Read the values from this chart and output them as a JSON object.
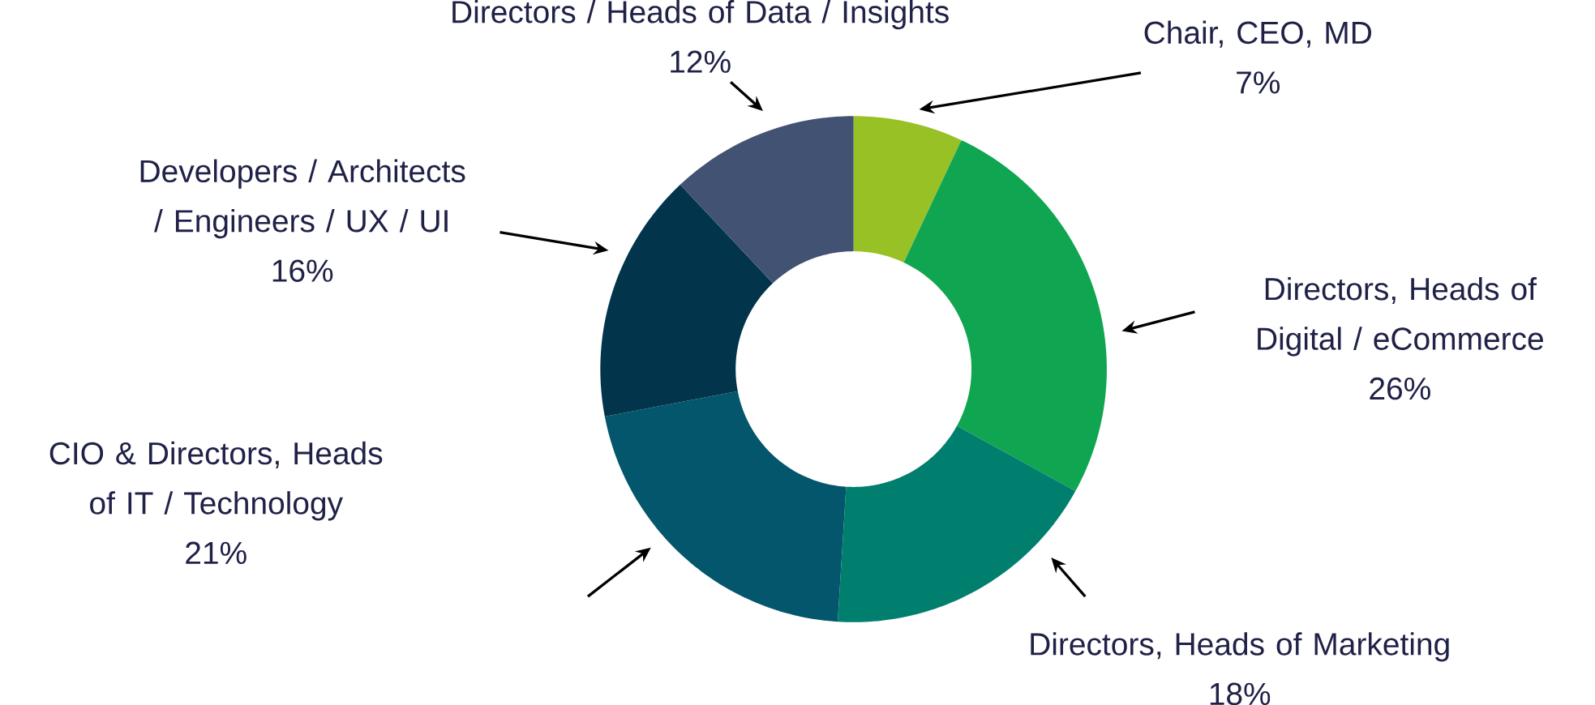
{
  "chart_data": {
    "type": "donut",
    "categories": [
      "Chair, CEO, MD",
      "Directors, Heads of Digital / eCommerce",
      "Directors, Heads of Marketing",
      "CIO & Directors, Heads of IT / Technology",
      "Developers / Architects / Engineers / UX / UI",
      "Directors / Heads of Data / Insights"
    ],
    "values": [
      7,
      26,
      18,
      21,
      16,
      12
    ],
    "value_labels": [
      "7%",
      "26%",
      "18%",
      "21%",
      "16%",
      "12%"
    ],
    "colors": [
      "#97c125",
      "#10a550",
      "#017f6e",
      "#03566b",
      "#02354b",
      "#425273"
    ]
  }
}
